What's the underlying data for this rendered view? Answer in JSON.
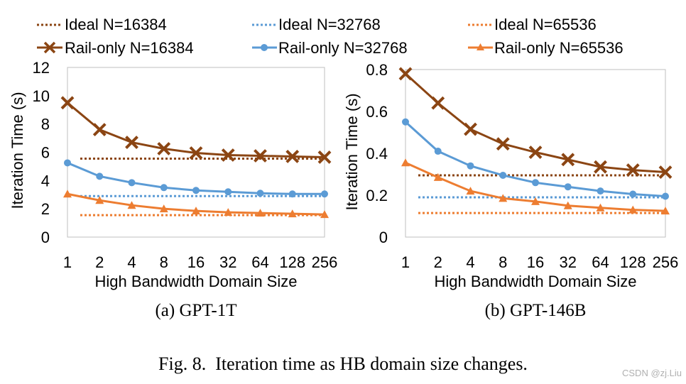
{
  "legend": {
    "ideal_16384": "Ideal N=16384",
    "ideal_32768": "Ideal N=32768",
    "ideal_65536": "Ideal N=65536",
    "rail_16384": "Rail-only N=16384",
    "rail_32768": "Rail-only N=32768",
    "rail_65536": "Rail-only N=65536"
  },
  "colors": {
    "n16384": "#8B4513",
    "n32768": "#5B9BD5",
    "n65536": "#ED7D31"
  },
  "chart_data": [
    {
      "type": "line",
      "caption": "(a) GPT-1T",
      "xlabel": "High Bandwidth Domain Size",
      "ylabel": "Iteration Time (s)",
      "categories": [
        "1",
        "2",
        "4",
        "8",
        "16",
        "32",
        "64",
        "128",
        "256"
      ],
      "ylim": [
        0,
        12
      ],
      "yticks": [
        "0",
        "2",
        "4",
        "6",
        "8",
        "10",
        "12"
      ],
      "grid": false,
      "series": [
        {
          "name": "Ideal N=16384",
          "style": "dotted",
          "values": [
            5.55,
            5.55,
            5.55,
            5.55,
            5.55,
            5.55,
            5.55,
            5.55,
            5.55
          ]
        },
        {
          "name": "Ideal N=32768",
          "style": "dotted",
          "values": [
            2.9,
            2.9,
            2.9,
            2.9,
            2.9,
            2.9,
            2.9,
            2.9,
            2.9
          ]
        },
        {
          "name": "Ideal N=65536",
          "style": "dotted",
          "values": [
            1.55,
            1.55,
            1.55,
            1.55,
            1.55,
            1.55,
            1.55,
            1.55,
            1.55
          ]
        },
        {
          "name": "Rail-only N=16384",
          "marker": "x",
          "values": [
            9.5,
            7.6,
            6.7,
            6.25,
            5.95,
            5.8,
            5.75,
            5.7,
            5.65
          ]
        },
        {
          "name": "Rail-only N=32768",
          "marker": "circle",
          "values": [
            5.25,
            4.3,
            3.85,
            3.5,
            3.3,
            3.2,
            3.1,
            3.05,
            3.05
          ]
        },
        {
          "name": "Rail-only N=65536",
          "marker": "triangle",
          "values": [
            3.05,
            2.6,
            2.25,
            2.0,
            1.85,
            1.75,
            1.7,
            1.65,
            1.6
          ]
        }
      ]
    },
    {
      "type": "line",
      "caption": "(b) GPT-146B",
      "xlabel": "High Bandwidth Domain Size",
      "ylabel": "Iteration Time (s)",
      "categories": [
        "1",
        "2",
        "4",
        "8",
        "16",
        "32",
        "64",
        "128",
        "256"
      ],
      "ylim": [
        0,
        0.8
      ],
      "yticks": [
        "0",
        "0.2",
        "0.4",
        "0.6",
        "0.8"
      ],
      "grid": false,
      "series": [
        {
          "name": "Ideal N=16384",
          "style": "dotted",
          "values": [
            0.295,
            0.295,
            0.295,
            0.295,
            0.295,
            0.295,
            0.295,
            0.295,
            0.295
          ]
        },
        {
          "name": "Ideal N=32768",
          "style": "dotted",
          "values": [
            0.19,
            0.19,
            0.19,
            0.19,
            0.19,
            0.19,
            0.19,
            0.19,
            0.19
          ]
        },
        {
          "name": "Ideal N=65536",
          "style": "dotted",
          "values": [
            0.115,
            0.115,
            0.115,
            0.115,
            0.115,
            0.115,
            0.115,
            0.115,
            0.115
          ]
        },
        {
          "name": "Rail-only N=16384",
          "marker": "x",
          "values": [
            0.78,
            0.64,
            0.515,
            0.445,
            0.405,
            0.37,
            0.335,
            0.32,
            0.31
          ]
        },
        {
          "name": "Rail-only N=32768",
          "marker": "circle",
          "values": [
            0.55,
            0.41,
            0.34,
            0.295,
            0.26,
            0.24,
            0.22,
            0.205,
            0.195
          ]
        },
        {
          "name": "Rail-only N=65536",
          "marker": "triangle",
          "values": [
            0.355,
            0.285,
            0.22,
            0.185,
            0.17,
            0.15,
            0.14,
            0.13,
            0.125
          ]
        }
      ]
    }
  ],
  "figure_caption": "Fig. 8.  Iteration time as HB domain size changes.",
  "watermark": "CSDN @zj.Liu"
}
